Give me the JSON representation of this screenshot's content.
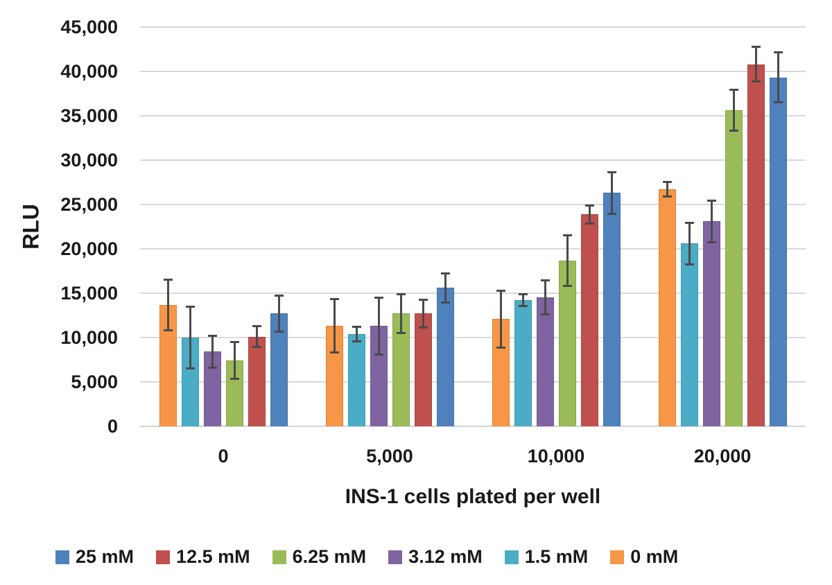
{
  "chart_data": {
    "type": "bar",
    "title": "",
    "xlabel": "INS-1 cells plated per well",
    "ylabel": "RLU",
    "ylim": [
      0,
      45000
    ],
    "ytick_step": 5000,
    "ytick_labels": [
      "0",
      "5,000",
      "10,000",
      "15,000",
      "20,000",
      "25,000",
      "30,000",
      "35,000",
      "40,000",
      "45,000"
    ],
    "categories": [
      "0",
      "5,000",
      "10,000",
      "20,000"
    ],
    "grid": true,
    "error_bars": true,
    "series": [
      {
        "name": "0 mM",
        "color": "#F79646",
        "values": [
          13700,
          11300,
          12100,
          26700
        ],
        "errors": [
          2900,
          3050,
          3250,
          850
        ]
      },
      {
        "name": "1.5 mM",
        "color": "#4BACC6",
        "values": [
          10000,
          10400,
          14200,
          20600
        ],
        "errors": [
          3500,
          850,
          700,
          2400
        ]
      },
      {
        "name": "3.12 mM",
        "color": "#8064A2",
        "values": [
          8400,
          11300,
          14500,
          23100
        ],
        "errors": [
          1850,
          3250,
          1950,
          2400
        ]
      },
      {
        "name": "6.25 mM",
        "color": "#9BBB59",
        "values": [
          7400,
          12700,
          18700,
          35600
        ],
        "errors": [
          2100,
          2250,
          2900,
          2350
        ]
      },
      {
        "name": "12.5 mM",
        "color": "#C0504D",
        "values": [
          10100,
          12700,
          23900,
          40800
        ],
        "errors": [
          1200,
          1600,
          1050,
          2000
        ]
      },
      {
        "name": "25 mM",
        "color": "#4F81BD",
        "values": [
          12700,
          15600,
          26300,
          39300
        ],
        "errors": [
          2100,
          1700,
          2400,
          2850
        ]
      }
    ],
    "legend": {
      "position": "bottom",
      "entries": [
        {
          "label": "25 mM",
          "color": "#4F81BD"
        },
        {
          "label": "12.5 mM",
          "color": "#C0504D"
        },
        {
          "label": "6.25 mM",
          "color": "#9BBB59"
        },
        {
          "label": "3.12 mM",
          "color": "#8064A2"
        },
        {
          "label": "1.5 mM",
          "color": "#4BACC6"
        },
        {
          "label": "0 mM",
          "color": "#F79646"
        }
      ]
    }
  },
  "colors": {
    "gridline": "#d9d9d9",
    "axis_line": "#d2d2d2",
    "error_bar": "#4a4a4a",
    "text": "#1a1a1a",
    "background": "#ffffff"
  }
}
